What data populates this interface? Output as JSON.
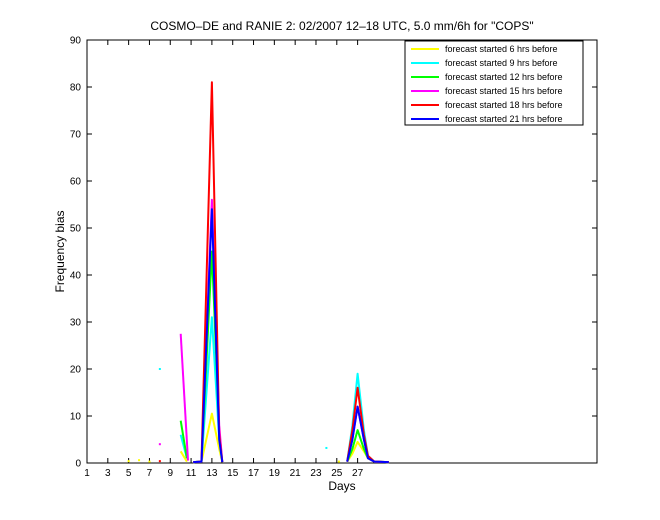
{
  "chart_data": {
    "type": "line",
    "title": "COSMO–DE and RANIE 2: 02/2007 12–18 UTC, 5.0 mm/6h for \"COPS\"",
    "xlabel": "Days",
    "ylabel": "Frequency bias",
    "xlim": [
      1,
      50
    ],
    "ylim": [
      0,
      90
    ],
    "x_ticks": [
      1,
      3,
      5,
      7,
      9,
      11,
      13,
      15,
      17,
      19,
      21,
      23,
      25,
      27
    ],
    "x_tick_labels": [
      "1",
      "3",
      "5",
      "7",
      "9",
      "11",
      "13",
      "15",
      "17",
      "19",
      "21",
      "23",
      "25",
      "27"
    ],
    "y_ticks": [
      0,
      10,
      20,
      30,
      40,
      50,
      60,
      70,
      80,
      90
    ],
    "grid": false,
    "legend_position": "top-right",
    "series": [
      {
        "name": "forecast started 6 hrs before",
        "color": "#ffff00",
        "segments": [
          [
            [
              5,
              0.4
            ]
          ],
          [
            [
              6,
              0.6
            ]
          ],
          [
            [
              7,
              0.3
            ]
          ],
          [
            [
              10,
              2.5
            ],
            [
              10.6,
              0.3
            ]
          ],
          [
            [
              11.2,
              0.2
            ],
            [
              12,
              0.3
            ],
            [
              13,
              10.5
            ],
            [
              13.7,
              3
            ],
            [
              14,
              0.2
            ]
          ],
          [
            [
              25.2,
              0.3
            ]
          ],
          [
            [
              26,
              0.3
            ],
            [
              26.5,
              2
            ],
            [
              27,
              4.5
            ],
            [
              27.6,
              2.5
            ],
            [
              28,
              1
            ],
            [
              28.6,
              0.3
            ],
            [
              30,
              0.2
            ]
          ]
        ]
      },
      {
        "name": "forecast started 9 hrs before",
        "color": "#00ffff",
        "segments": [
          [
            [
              8,
              20
            ]
          ],
          [
            [
              10,
              6
            ],
            [
              10.6,
              1
            ]
          ],
          [
            [
              11.2,
              0.2
            ],
            [
              12,
              0.3
            ],
            [
              13,
              31
            ],
            [
              13.7,
              5
            ],
            [
              14,
              0.2
            ]
          ],
          [
            [
              24,
              3.2
            ]
          ],
          [
            [
              26,
              0.3
            ],
            [
              26.5,
              8
            ],
            [
              27,
              19
            ],
            [
              27.6,
              7
            ],
            [
              28,
              1.5
            ],
            [
              28.6,
              0.3
            ],
            [
              30,
              0.2
            ]
          ]
        ]
      },
      {
        "name": "forecast started 12 hrs before",
        "color": "#00ff00",
        "segments": [
          [
            [
              10,
              9
            ],
            [
              10.6,
              1
            ]
          ],
          [
            [
              11.2,
              0.2
            ],
            [
              12,
              0.3
            ],
            [
              13,
              45
            ],
            [
              13.7,
              7
            ],
            [
              14,
              0.2
            ]
          ],
          [
            [
              26,
              0.3
            ],
            [
              26.5,
              3
            ],
            [
              27,
              7
            ],
            [
              27.6,
              3
            ],
            [
              28,
              1
            ],
            [
              28.6,
              0.3
            ],
            [
              30,
              0.2
            ]
          ]
        ]
      },
      {
        "name": "forecast started 15 hrs before",
        "color": "#ff00ff",
        "segments": [
          [
            [
              8,
              4
            ]
          ],
          [
            [
              10,
              27.5
            ],
            [
              10.7,
              0.5
            ]
          ],
          [
            [
              11.2,
              0.2
            ],
            [
              12,
              0.3
            ],
            [
              13,
              56
            ],
            [
              13.7,
              8
            ],
            [
              14,
              0.2
            ]
          ],
          [
            [
              26,
              0.3
            ],
            [
              26.5,
              5
            ],
            [
              27,
              12
            ],
            [
              27.6,
              5
            ],
            [
              28,
              1
            ],
            [
              28.6,
              0.3
            ],
            [
              30,
              0.2
            ]
          ]
        ]
      },
      {
        "name": "forecast started 18 hrs before",
        "color": "#ff0000",
        "segments": [
          [
            [
              8,
              0.4
            ]
          ],
          [
            [
              11.2,
              0.2
            ],
            [
              12,
              0.3
            ],
            [
              13,
              81
            ],
            [
              13.7,
              6
            ],
            [
              14,
              0.2
            ]
          ],
          [
            [
              26,
              0.3
            ],
            [
              26.5,
              7
            ],
            [
              27,
              16
            ],
            [
              27.6,
              6
            ],
            [
              28,
              1.5
            ],
            [
              28.6,
              0.3
            ],
            [
              30,
              0.2
            ]
          ]
        ]
      },
      {
        "name": "forecast started 21 hrs before",
        "color": "#0000ff",
        "segments": [
          [
            [
              11.2,
              0.2
            ],
            [
              12,
              0.3
            ],
            [
              13,
              54
            ],
            [
              13.7,
              5
            ],
            [
              14,
              0.2
            ]
          ],
          [
            [
              26,
              0.3
            ],
            [
              26.5,
              5
            ],
            [
              27,
              12
            ],
            [
              27.6,
              5
            ],
            [
              28,
              1
            ],
            [
              28.6,
              0.3
            ],
            [
              30,
              0.2
            ]
          ]
        ]
      }
    ]
  }
}
